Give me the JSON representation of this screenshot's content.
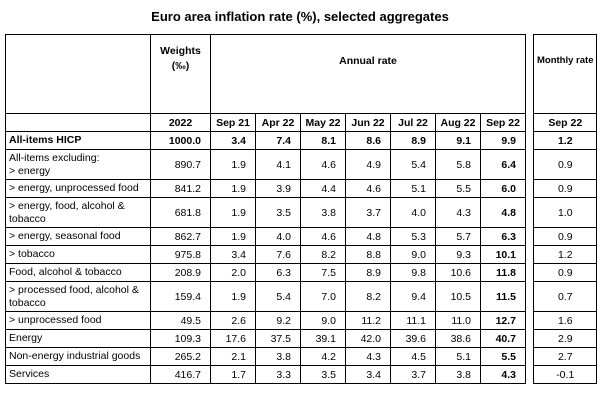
{
  "title": "Euro area inflation rate (%), selected aggregates",
  "headers": {
    "weights": "Weights",
    "weights_unit": "(‰)",
    "annual_rate": "Annual rate",
    "monthly_rate": "Monthly rate",
    "weights_year": "2022",
    "annual_months": [
      "Sep 21",
      "Apr 22",
      "May 22",
      "Jun 22",
      "Jul 22",
      "Aug 22",
      "Sep 22"
    ],
    "monthly_month": "Sep 22"
  },
  "rows": [
    {
      "label": "All-items HICP",
      "weight": "1000.0",
      "annual": [
        "3.4",
        "7.4",
        "8.1",
        "8.6",
        "8.9",
        "9.1",
        "9.9"
      ],
      "monthly": "1.2",
      "bold_row": true
    },
    {
      "label": "All-items excluding:\n> energy",
      "weight": "890.7",
      "annual": [
        "1.9",
        "4.1",
        "4.6",
        "4.9",
        "5.4",
        "5.8",
        "6.4"
      ],
      "monthly": "0.9"
    },
    {
      "label": "> energy, unprocessed food",
      "weight": "841.2",
      "annual": [
        "1.9",
        "3.9",
        "4.4",
        "4.6",
        "5.1",
        "5.5",
        "6.0"
      ],
      "monthly": "0.9"
    },
    {
      "label": "> energy, food, alcohol & tobacco",
      "weight": "681.8",
      "annual": [
        "1.9",
        "3.5",
        "3.8",
        "3.7",
        "4.0",
        "4.3",
        "4.8"
      ],
      "monthly": "1.0"
    },
    {
      "label": "> energy, seasonal food",
      "weight": "862.7",
      "annual": [
        "1.9",
        "4.0",
        "4.6",
        "4.8",
        "5.3",
        "5.7",
        "6.3"
      ],
      "monthly": "0.9"
    },
    {
      "label": "> tobacco",
      "weight": "975.8",
      "annual": [
        "3.4",
        "7.6",
        "8.2",
        "8.8",
        "9.0",
        "9.3",
        "10.1"
      ],
      "monthly": "1.2"
    },
    {
      "label": "Food, alcohol & tobacco",
      "weight": "208.9",
      "annual": [
        "2.0",
        "6.3",
        "7.5",
        "8.9",
        "9.8",
        "10.6",
        "11.8"
      ],
      "monthly": "0.9"
    },
    {
      "label": "> processed food, alcohol & tobacco",
      "weight": "159.4",
      "annual": [
        "1.9",
        "5.4",
        "7.0",
        "8.2",
        "9.4",
        "10.5",
        "11.5"
      ],
      "monthly": "0.7"
    },
    {
      "label": "> unprocessed food",
      "weight": "49.5",
      "annual": [
        "2.6",
        "9.2",
        "9.0",
        "11.2",
        "11.1",
        "11.0",
        "12.7"
      ],
      "monthly": "1.6"
    },
    {
      "label": "Energy",
      "weight": "109.3",
      "annual": [
        "17.6",
        "37.5",
        "39.1",
        "42.0",
        "39.6",
        "38.6",
        "40.7"
      ],
      "monthly": "2.9"
    },
    {
      "label": "Non-energy industrial goods",
      "weight": "265.2",
      "annual": [
        "2.1",
        "3.8",
        "4.2",
        "4.3",
        "4.5",
        "5.1",
        "5.5"
      ],
      "monthly": "2.7"
    },
    {
      "label": "Services",
      "weight": "416.7",
      "annual": [
        "1.7",
        "3.3",
        "3.5",
        "3.4",
        "3.7",
        "3.8",
        "4.3"
      ],
      "monthly": "-0.1"
    }
  ]
}
